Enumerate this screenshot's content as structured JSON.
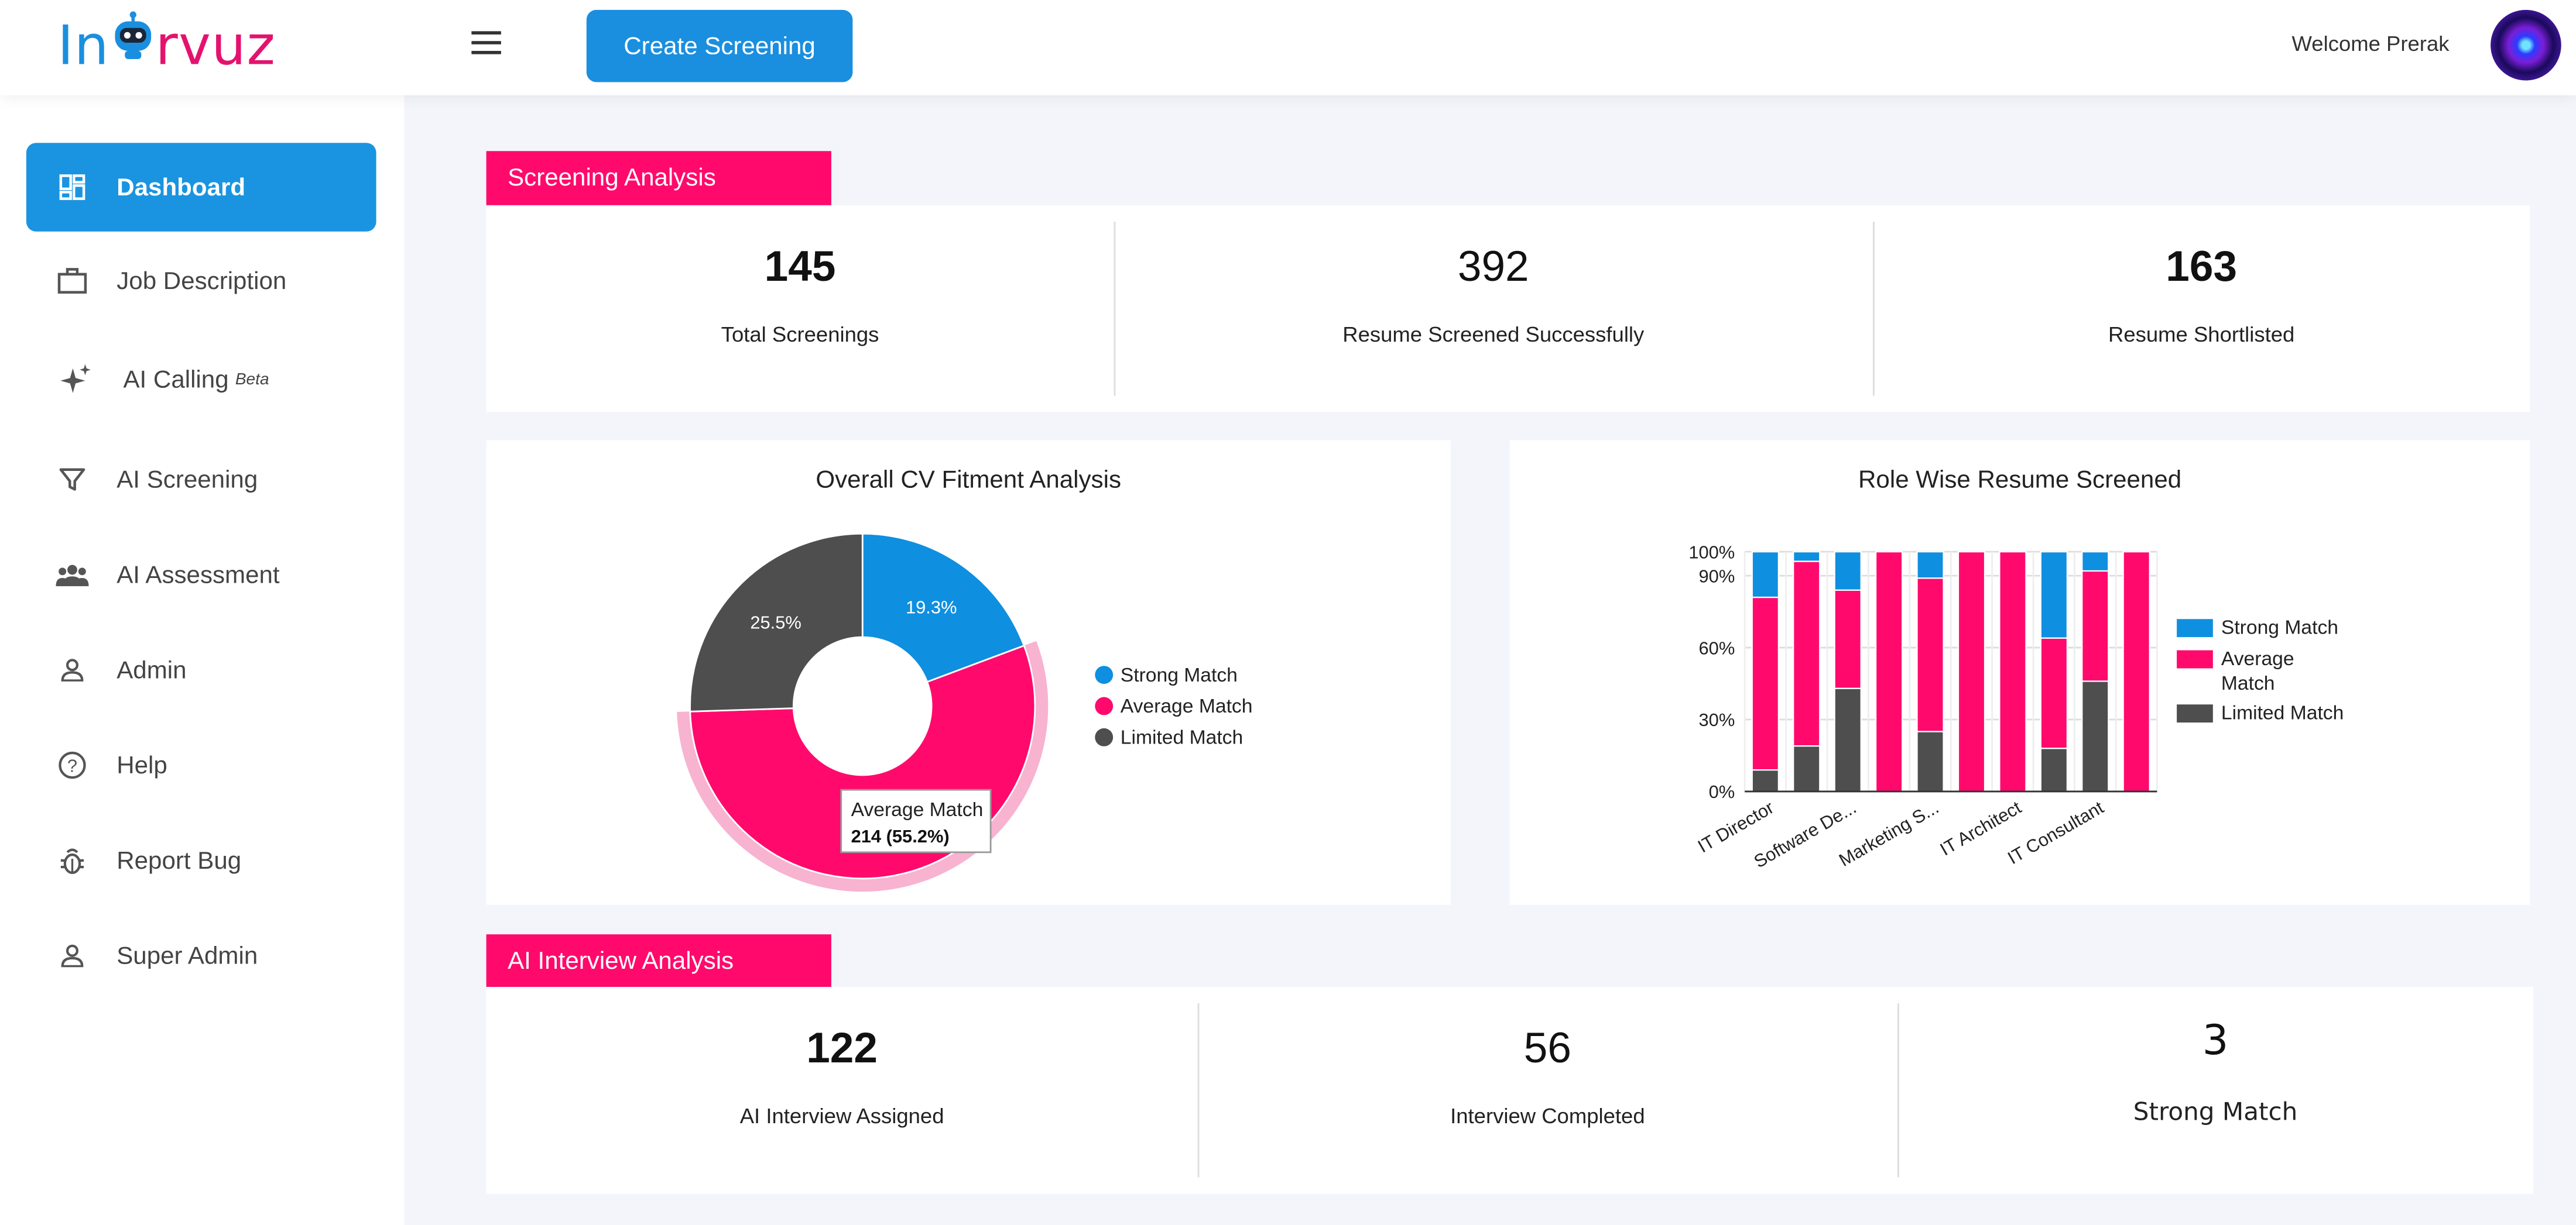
{
  "header": {
    "logo_prefix": "In",
    "logo_suffix": "rvuz",
    "create_label": "Create Screening",
    "welcome": "Welcome Prerak"
  },
  "sidebar": {
    "items": [
      {
        "label": "Dashboard",
        "icon": "dashboard-icon",
        "active": true
      },
      {
        "label": "Job Description",
        "icon": "briefcase-icon"
      },
      {
        "label": "AI Calling",
        "badge": "Beta",
        "icon": "sparkle-icon"
      },
      {
        "label": "AI Screening",
        "icon": "filter-icon"
      },
      {
        "label": "AI Assessment",
        "icon": "group-icon"
      },
      {
        "label": "Admin",
        "icon": "person-icon"
      },
      {
        "label": "Help",
        "icon": "help-circle-icon"
      },
      {
        "label": "Report Bug",
        "icon": "bug-icon"
      },
      {
        "label": "Super Admin",
        "icon": "person-icon"
      }
    ]
  },
  "screening": {
    "label": "Screening Analysis",
    "stats": [
      {
        "value": "145",
        "label": "Total Screenings"
      },
      {
        "value": "392",
        "label": "Resume Screened Successfully"
      },
      {
        "value": "163",
        "label": "Resume Shortlisted"
      }
    ]
  },
  "interview": {
    "label": "AI Interview Analysis",
    "stats": [
      {
        "value": "122",
        "label": "AI Interview Assigned"
      },
      {
        "value": "56",
        "label": "Interview Completed"
      },
      {
        "value": "3",
        "label": "Strong Match"
      }
    ]
  },
  "colors": {
    "strong": "#0f8fe0",
    "average": "#ff0a6c",
    "limited": "#4e4e4e",
    "brand_blue": "#1a94e0"
  },
  "chart_data": [
    {
      "type": "pie",
      "title": "Overall CV Fitment Analysis",
      "categories": [
        "Strong Match",
        "Average Match",
        "Limited Match"
      ],
      "values": [
        19.3,
        55.2,
        25.5
      ],
      "labels": [
        "19.3%",
        "",
        "25.5%"
      ],
      "legend": "right",
      "tooltip": {
        "title": "Average Match",
        "value": "214 (55.2%)"
      }
    },
    {
      "type": "bar",
      "stacked": true,
      "title": "Role Wise Resume Screened",
      "categories": [
        "IT Director",
        "",
        "Software De...",
        "",
        "Marketing S...",
        "",
        "IT Architect",
        "",
        "IT Consultant",
        ""
      ],
      "series": [
        {
          "name": "Limited Match",
          "values": [
            9,
            19,
            43,
            0,
            25,
            0,
            0,
            18,
            46,
            0
          ]
        },
        {
          "name": "Average Match",
          "values": [
            72,
            77,
            41,
            100,
            64,
            100,
            100,
            46,
            46,
            100
          ]
        },
        {
          "name": "Strong Match",
          "values": [
            19,
            4,
            16,
            0,
            11,
            0,
            0,
            36,
            8,
            0
          ]
        }
      ],
      "yticks": [
        "0%",
        "30%",
        "60%",
        "90%",
        "100%"
      ],
      "ylim": [
        0,
        100
      ],
      "legend": "right"
    }
  ]
}
